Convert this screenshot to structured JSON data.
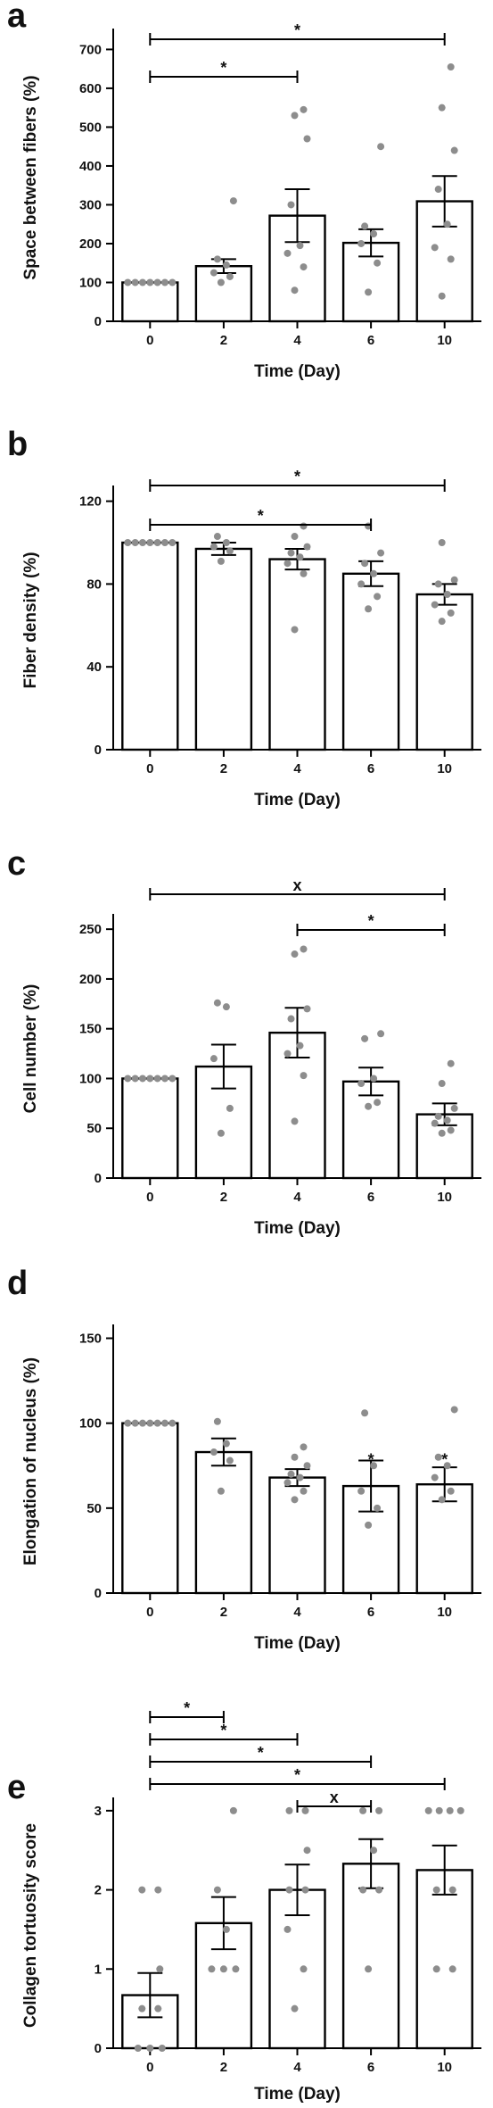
{
  "chart_data": [
    {
      "type": "bar",
      "panel": "a",
      "xlabel": "Time (Day)",
      "ylabel": "Space between fibers (%)",
      "categories": [
        "0",
        "2",
        "4",
        "6",
        "10"
      ],
      "yticks": [
        "0",
        "100",
        "200",
        "300",
        "400",
        "500",
        "600",
        "700"
      ],
      "ylim": [
        0,
        740
      ],
      "values": [
        100,
        142,
        272,
        202,
        309
      ],
      "errors": [
        0,
        18,
        68,
        35,
        65
      ],
      "points": [
        [
          100,
          100,
          100,
          100,
          100,
          100,
          100
        ],
        [
          100,
          115,
          125,
          145,
          160,
          310
        ],
        [
          80,
          140,
          175,
          195,
          300,
          470,
          530,
          545
        ],
        [
          75,
          150,
          200,
          225,
          245,
          450
        ],
        [
          65,
          160,
          190,
          250,
          340,
          440,
          550,
          655
        ]
      ],
      "significance": [
        {
          "from": "0",
          "to": "4",
          "label": "*"
        },
        {
          "from": "0",
          "to": "10",
          "label": "*"
        }
      ]
    },
    {
      "type": "bar",
      "panel": "b",
      "xlabel": "Time (Day)",
      "ylabel": "Fiber density (%)",
      "categories": [
        "0",
        "2",
        "4",
        "6",
        "10"
      ],
      "yticks": [
        "0",
        "40",
        "80",
        "120"
      ],
      "ylim": [
        0,
        125
      ],
      "values": [
        100,
        97,
        92,
        85,
        75
      ],
      "errors": [
        0,
        3,
        5,
        6,
        5
      ],
      "points": [
        [
          100,
          100,
          100,
          100,
          100,
          100,
          100
        ],
        [
          91,
          96,
          98,
          100,
          103
        ],
        [
          58,
          85,
          90,
          93,
          95,
          98,
          103,
          108
        ],
        [
          68,
          74,
          80,
          85,
          90,
          95,
          108
        ],
        [
          62,
          66,
          70,
          75,
          80,
          82,
          100
        ]
      ],
      "significance": [
        {
          "from": "0",
          "to": "6",
          "label": "*"
        },
        {
          "from": "0",
          "to": "10",
          "label": "*"
        }
      ]
    },
    {
      "type": "bar",
      "panel": "c",
      "xlabel": "Time (Day)",
      "ylabel": "Cell number (%)",
      "categories": [
        "0",
        "2",
        "4",
        "6",
        "10"
      ],
      "yticks": [
        "0",
        "50",
        "100",
        "150",
        "200",
        "250"
      ],
      "ylim": [
        0,
        260
      ],
      "values": [
        100,
        112,
        146,
        97,
        64
      ],
      "errors": [
        0,
        22,
        25,
        14,
        11
      ],
      "points": [
        [
          100,
          100,
          100,
          100,
          100,
          100,
          100
        ],
        [
          45,
          70,
          120,
          172,
          176
        ],
        [
          57,
          103,
          125,
          133,
          160,
          170,
          225,
          230
        ],
        [
          72,
          76,
          95,
          100,
          140,
          145
        ],
        [
          45,
          48,
          55,
          58,
          62,
          70,
          95,
          115
        ]
      ],
      "significance": [
        {
          "from": "4",
          "to": "10",
          "label": "*"
        },
        {
          "from": "0",
          "to": "10",
          "label": "x"
        }
      ]
    },
    {
      "type": "bar",
      "panel": "d",
      "xlabel": "Time (Day)",
      "ylabel": "Elongation of nucleus (%)",
      "categories": [
        "0",
        "2",
        "4",
        "6",
        "10"
      ],
      "yticks": [
        "0",
        "50",
        "100",
        "150"
      ],
      "ylim": [
        0,
        155
      ],
      "values": [
        100,
        83,
        68,
        63,
        64
      ],
      "errors": [
        0,
        8,
        5,
        15,
        10
      ],
      "points": [
        [
          100,
          100,
          100,
          100,
          100,
          100,
          100
        ],
        [
          60,
          78,
          83,
          88,
          101
        ],
        [
          55,
          60,
          65,
          68,
          70,
          75,
          80,
          86
        ],
        [
          40,
          50,
          60,
          75,
          106
        ],
        [
          55,
          60,
          68,
          75,
          80,
          108
        ]
      ],
      "point_markers": [
        [],
        [],
        [],
        [
          78
        ],
        [
          78
        ]
      ],
      "significance": []
    },
    {
      "type": "bar",
      "panel": "e",
      "xlabel": "Time (Day)",
      "ylabel": "Collagen tortuosity score",
      "categories": [
        "0",
        "2",
        "4",
        "6",
        "10"
      ],
      "yticks": [
        "0",
        "1",
        "2",
        "3"
      ],
      "ylim": [
        0,
        3.1
      ],
      "values": [
        0.67,
        1.58,
        2.0,
        2.33,
        2.25
      ],
      "errors": [
        0.28,
        0.33,
        0.32,
        0.31,
        0.31
      ],
      "points": [
        [
          0,
          0,
          0,
          0.5,
          0.5,
          1,
          2,
          2
        ],
        [
          1,
          1,
          1,
          1.5,
          2,
          3
        ],
        [
          0.5,
          1,
          1.5,
          2,
          2,
          2.5,
          3,
          3
        ],
        [
          1,
          2,
          2,
          2.5,
          3,
          3
        ],
        [
          1,
          1,
          2,
          2,
          3,
          3,
          3,
          3
        ]
      ],
      "significance": [
        {
          "from": "4",
          "to": "6",
          "label": "x"
        },
        {
          "from": "0",
          "to": "10",
          "label": "*"
        },
        {
          "from": "0",
          "to": "6",
          "label": "*"
        },
        {
          "from": "0",
          "to": "4",
          "label": "*"
        },
        {
          "from": "0",
          "to": "2",
          "label": "*"
        }
      ]
    }
  ]
}
